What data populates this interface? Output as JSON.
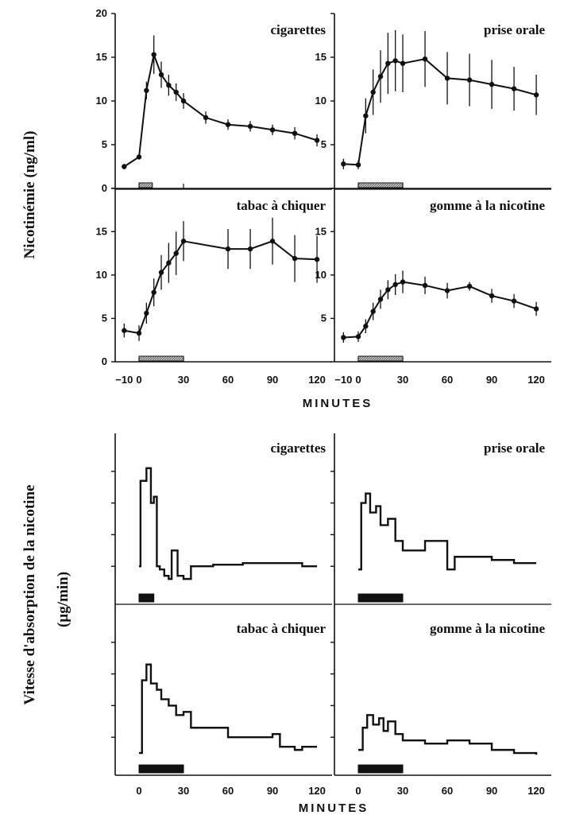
{
  "colors": {
    "ink": "#111111",
    "hatch": "#9a9a9a",
    "background": "#ffffff"
  },
  "chart_data": [
    {
      "type": "line",
      "name": "nicotinemie",
      "ylabel": "Nicotinémie (ng/ml)",
      "xlabel": "MINUTES",
      "xlim": [
        -15,
        128
      ],
      "ylim": [
        0,
        20
      ],
      "xticks": [
        -10,
        0,
        30,
        60,
        90,
        120
      ],
      "xtick_labels": [
        "−10",
        "0",
        "30",
        "60",
        "90",
        "120"
      ],
      "yticks": [
        0,
        5,
        10,
        15,
        20
      ],
      "error_bars": true,
      "panels": [
        {
          "title": "cigarettes",
          "ytick_labels": [
            "0",
            "5",
            "10",
            "15",
            "20"
          ],
          "exposure": [
            0,
            9
          ],
          "points": [
            {
              "x": -10,
              "y": 2.5,
              "err": 0.3
            },
            {
              "x": 0,
              "y": 3.6,
              "err": 0.3
            },
            {
              "x": 5,
              "y": 11.2,
              "err": 1.0
            },
            {
              "x": 10,
              "y": 15.3,
              "err": 2.2
            },
            {
              "x": 15,
              "y": 13.0,
              "err": 1.5
            },
            {
              "x": 20,
              "y": 11.8,
              "err": 1.2
            },
            {
              "x": 25,
              "y": 11.0,
              "err": 1.0
            },
            {
              "x": 30,
              "y": 10.0,
              "err": 0.9
            },
            {
              "x": 45,
              "y": 8.1,
              "err": 0.7
            },
            {
              "x": 60,
              "y": 7.3,
              "err": 0.6
            },
            {
              "x": 75,
              "y": 7.1,
              "err": 0.6
            },
            {
              "x": 90,
              "y": 6.7,
              "err": 0.6
            },
            {
              "x": 105,
              "y": 6.3,
              "err": 0.7
            },
            {
              "x": 120,
              "y": 5.5,
              "err": 0.7
            }
          ]
        },
        {
          "title": "prise orale",
          "ytick_labels": [
            "",
            "5",
            "10",
            "15",
            ""
          ],
          "exposure": [
            0,
            30
          ],
          "points": [
            {
              "x": -10,
              "y": 2.8,
              "err": 0.6
            },
            {
              "x": 0,
              "y": 2.7,
              "err": 0.5
            },
            {
              "x": 5,
              "y": 8.3,
              "err": 2.0
            },
            {
              "x": 10,
              "y": 11.0,
              "err": 2.6
            },
            {
              "x": 15,
              "y": 12.8,
              "err": 3.0
            },
            {
              "x": 20,
              "y": 14.3,
              "err": 3.5
            },
            {
              "x": 25,
              "y": 14.6,
              "err": 3.5
            },
            {
              "x": 30,
              "y": 14.3,
              "err": 3.3
            },
            {
              "x": 45,
              "y": 14.8,
              "err": 3.2
            },
            {
              "x": 60,
              "y": 12.6,
              "err": 3.0
            },
            {
              "x": 75,
              "y": 12.4,
              "err": 3.0
            },
            {
              "x": 90,
              "y": 11.9,
              "err": 2.8
            },
            {
              "x": 105,
              "y": 11.4,
              "err": 2.5
            },
            {
              "x": 120,
              "y": 10.7,
              "err": 2.3
            }
          ]
        },
        {
          "title": "tabac à chiquer",
          "ytick_labels": [
            "0",
            "5",
            "10",
            "15",
            ""
          ],
          "exposure": [
            0,
            30
          ],
          "points": [
            {
              "x": -10,
              "y": 3.6,
              "err": 0.8
            },
            {
              "x": 0,
              "y": 3.3,
              "err": 0.9
            },
            {
              "x": 5,
              "y": 5.6,
              "err": 1.2
            },
            {
              "x": 10,
              "y": 8.0,
              "err": 1.6
            },
            {
              "x": 15,
              "y": 10.3,
              "err": 2.0
            },
            {
              "x": 20,
              "y": 11.4,
              "err": 2.3
            },
            {
              "x": 25,
              "y": 12.5,
              "err": 2.5
            },
            {
              "x": 30,
              "y": 13.9,
              "err": 2.3
            },
            {
              "x": 60,
              "y": 13.0,
              "err": 2.3
            },
            {
              "x": 75,
              "y": 13.0,
              "err": 2.3
            },
            {
              "x": 90,
              "y": 13.9,
              "err": 2.7
            },
            {
              "x": 105,
              "y": 11.9,
              "err": 2.7
            },
            {
              "x": 120,
              "y": 11.8,
              "err": 2.7
            }
          ]
        },
        {
          "title": "gomme à la nicotine",
          "ytick_labels": [
            "",
            "5",
            "10",
            "15",
            ""
          ],
          "exposure": [
            0,
            30
          ],
          "points": [
            {
              "x": -10,
              "y": 2.8,
              "err": 0.6
            },
            {
              "x": 0,
              "y": 2.9,
              "err": 0.6
            },
            {
              "x": 5,
              "y": 4.1,
              "err": 0.8
            },
            {
              "x": 10,
              "y": 5.8,
              "err": 1.0
            },
            {
              "x": 15,
              "y": 7.2,
              "err": 1.1
            },
            {
              "x": 20,
              "y": 8.3,
              "err": 1.1
            },
            {
              "x": 25,
              "y": 8.9,
              "err": 1.2
            },
            {
              "x": 30,
              "y": 9.2,
              "err": 1.3
            },
            {
              "x": 45,
              "y": 8.8,
              "err": 1.0
            },
            {
              "x": 60,
              "y": 8.2,
              "err": 0.9
            },
            {
              "x": 75,
              "y": 8.7,
              "err": 0.5
            },
            {
              "x": 90,
              "y": 7.6,
              "err": 0.8
            },
            {
              "x": 105,
              "y": 7.0,
              "err": 0.8
            },
            {
              "x": 120,
              "y": 6.1,
              "err": 0.8
            }
          ]
        }
      ]
    },
    {
      "type": "line",
      "name": "absorption",
      "ylabel": "Vitesse d'absorption de la nicotine",
      "yunit": "(µg/min)",
      "xlabel": "MINUTES",
      "xlim": [
        -15,
        128
      ],
      "ylim": [
        0,
        5
      ],
      "xticks": [
        0,
        30,
        60,
        90,
        120
      ],
      "xtick_labels": [
        "0",
        "30",
        "60",
        "90",
        "120"
      ],
      "yticks": [
        1,
        2,
        3,
        4
      ],
      "step": true,
      "panels": [
        {
          "title": "cigarettes",
          "exposure": [
            0,
            10
          ],
          "points": [
            {
              "x": 0,
              "y": 1.0
            },
            {
              "x": 1,
              "y": 3.7
            },
            {
              "x": 5,
              "y": 4.1
            },
            {
              "x": 8,
              "y": 3.0
            },
            {
              "x": 10,
              "y": 3.2
            },
            {
              "x": 12,
              "y": 1.0
            },
            {
              "x": 14,
              "y": 0.9
            },
            {
              "x": 17,
              "y": 0.7
            },
            {
              "x": 20,
              "y": 0.6
            },
            {
              "x": 22,
              "y": 1.5
            },
            {
              "x": 26,
              "y": 0.7
            },
            {
              "x": 30,
              "y": 0.6
            },
            {
              "x": 35,
              "y": 1.0
            },
            {
              "x": 50,
              "y": 1.05
            },
            {
              "x": 70,
              "y": 1.1
            },
            {
              "x": 90,
              "y": 1.1
            },
            {
              "x": 110,
              "y": 1.0
            },
            {
              "x": 120,
              "y": 1.0
            }
          ]
        },
        {
          "title": "prise orale",
          "exposure": [
            0,
            30
          ],
          "points": [
            {
              "x": 0,
              "y": 0.9
            },
            {
              "x": 2,
              "y": 3.0
            },
            {
              "x": 5,
              "y": 3.3
            },
            {
              "x": 8,
              "y": 2.7
            },
            {
              "x": 12,
              "y": 2.9
            },
            {
              "x": 15,
              "y": 2.3
            },
            {
              "x": 20,
              "y": 2.5
            },
            {
              "x": 25,
              "y": 1.8
            },
            {
              "x": 30,
              "y": 1.5
            },
            {
              "x": 45,
              "y": 1.8
            },
            {
              "x": 60,
              "y": 0.9
            },
            {
              "x": 65,
              "y": 1.3
            },
            {
              "x": 75,
              "y": 1.3
            },
            {
              "x": 90,
              "y": 1.2
            },
            {
              "x": 105,
              "y": 1.1
            },
            {
              "x": 120,
              "y": 1.1
            }
          ]
        },
        {
          "title": "tabac à chiquer",
          "exposure": [
            0,
            30
          ],
          "points": [
            {
              "x": 0,
              "y": 0.5
            },
            {
              "x": 2,
              "y": 2.8
            },
            {
              "x": 5,
              "y": 3.3
            },
            {
              "x": 8,
              "y": 2.7
            },
            {
              "x": 12,
              "y": 2.5
            },
            {
              "x": 15,
              "y": 2.2
            },
            {
              "x": 20,
              "y": 2.0
            },
            {
              "x": 25,
              "y": 1.7
            },
            {
              "x": 30,
              "y": 1.8
            },
            {
              "x": 35,
              "y": 1.3
            },
            {
              "x": 60,
              "y": 1.0
            },
            {
              "x": 75,
              "y": 1.0
            },
            {
              "x": 90,
              "y": 1.1
            },
            {
              "x": 95,
              "y": 0.7
            },
            {
              "x": 105,
              "y": 0.6
            },
            {
              "x": 110,
              "y": 0.7
            },
            {
              "x": 120,
              "y": 0.7
            }
          ]
        },
        {
          "title": "gomme à la nicotine",
          "exposure": [
            0,
            30
          ],
          "points": [
            {
              "x": 0,
              "y": 0.6
            },
            {
              "x": 3,
              "y": 1.3
            },
            {
              "x": 6,
              "y": 1.7
            },
            {
              "x": 10,
              "y": 1.4
            },
            {
              "x": 14,
              "y": 1.6
            },
            {
              "x": 17,
              "y": 1.2
            },
            {
              "x": 20,
              "y": 1.5
            },
            {
              "x": 25,
              "y": 1.1
            },
            {
              "x": 30,
              "y": 0.9
            },
            {
              "x": 45,
              "y": 0.8
            },
            {
              "x": 60,
              "y": 0.9
            },
            {
              "x": 75,
              "y": 0.8
            },
            {
              "x": 90,
              "y": 0.6
            },
            {
              "x": 105,
              "y": 0.5
            },
            {
              "x": 120,
              "y": 0.45
            }
          ]
        }
      ]
    }
  ]
}
